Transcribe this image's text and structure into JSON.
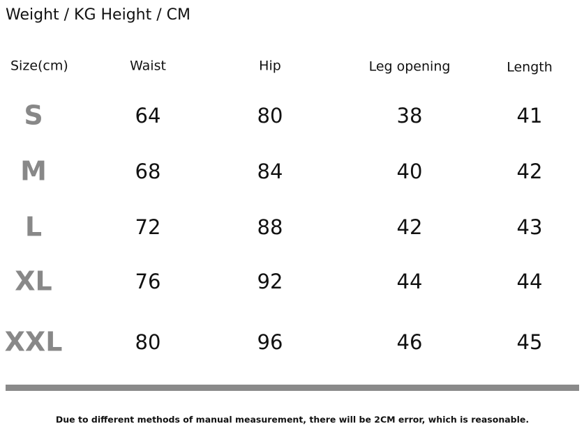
{
  "header": {
    "title": "Weight / KG Height / CM"
  },
  "table": {
    "columns": [
      "Size(cm)",
      "Waist",
      "Hip",
      "Leg opening",
      "Length"
    ],
    "rows": [
      [
        "S",
        64,
        80,
        38,
        41
      ],
      [
        "M",
        68,
        84,
        40,
        42
      ],
      [
        "L",
        72,
        88,
        42,
        43
      ],
      [
        "XL",
        76,
        92,
        44,
        44
      ],
      [
        "XXL",
        80,
        96,
        46,
        45
      ]
    ]
  },
  "footer": {
    "note": "Due to different methods of manual measurement, there will be 2CM error, which is reasonable."
  }
}
